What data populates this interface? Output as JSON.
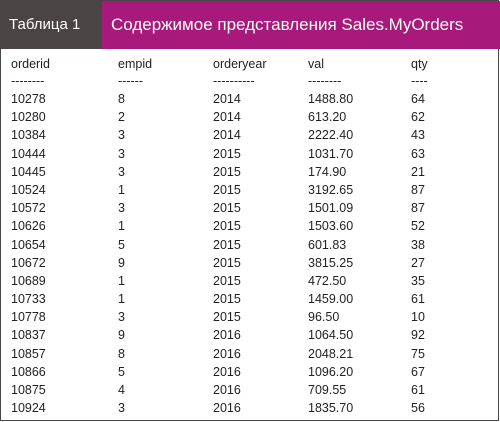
{
  "header": {
    "label": "Таблица 1",
    "title": "Содержимое представления Sales.MyOrders"
  },
  "table": {
    "columns": [
      "orderid",
      "empid",
      "orderyear",
      "val",
      "qty"
    ],
    "dashes": [
      "--------",
      "------",
      "----------",
      "--------",
      "----"
    ],
    "rows": [
      [
        "10278",
        "8",
        "2014",
        "1488.80",
        "64"
      ],
      [
        "10280",
        "2",
        "2014",
        "613.20",
        "62"
      ],
      [
        "10384",
        "3",
        "2014",
        "2222.40",
        "43"
      ],
      [
        "10444",
        "3",
        "2015",
        "1031.70",
        "63"
      ],
      [
        "10445",
        "3",
        "2015",
        "174.90",
        "21"
      ],
      [
        "10524",
        "1",
        "2015",
        "3192.65",
        "87"
      ],
      [
        "10572",
        "3",
        "2015",
        "1501.09",
        "87"
      ],
      [
        "10626",
        "1",
        "2015",
        "1503.60",
        "52"
      ],
      [
        "10654",
        "5",
        "2015",
        "601.83",
        "38"
      ],
      [
        "10672",
        "9",
        "2015",
        "3815.25",
        "27"
      ],
      [
        "10689",
        "1",
        "2015",
        "472.50",
        "35"
      ],
      [
        "10733",
        "1",
        "2015",
        "1459.00",
        "61"
      ],
      [
        "10778",
        "3",
        "2015",
        "96.50",
        "10"
      ],
      [
        "10837",
        "9",
        "2016",
        "1064.50",
        "92"
      ],
      [
        "10857",
        "8",
        "2016",
        "2048.21",
        "75"
      ],
      [
        "10866",
        "5",
        "2016",
        "1096.20",
        "67"
      ],
      [
        "10875",
        "4",
        "2016",
        "709.55",
        "61"
      ],
      [
        "10924",
        "3",
        "2016",
        "1835.70",
        "56"
      ]
    ]
  }
}
